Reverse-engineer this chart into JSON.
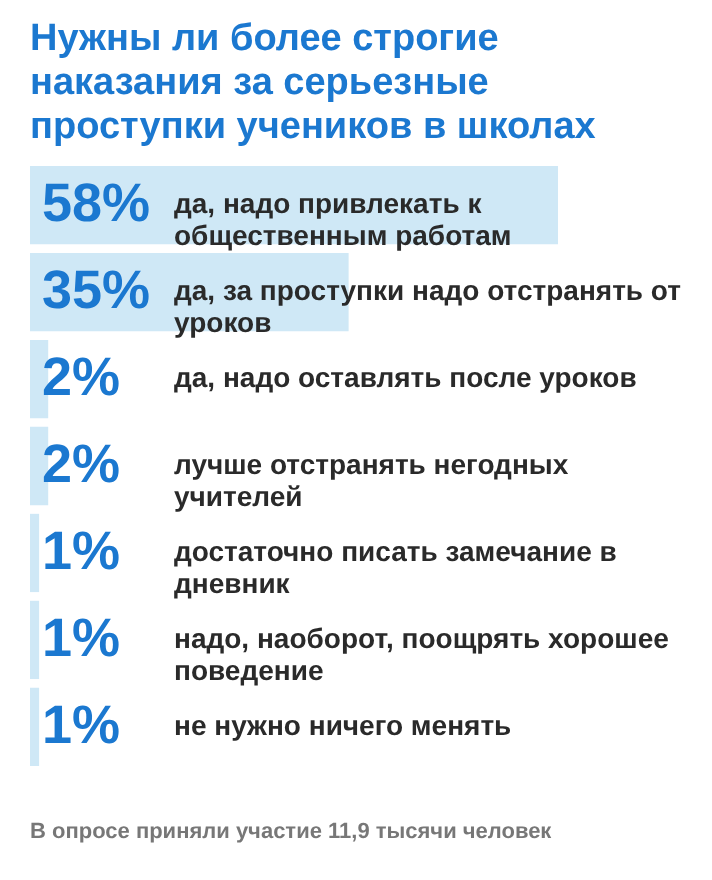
{
  "chart_data": {
    "type": "bar",
    "orientation": "horizontal",
    "title": "Нужны ли более строгие наказания за серьезные проступки  учеников в школах",
    "categories": [
      "да, надо привлекать к общественным работам",
      "да, за проступки надо отстранять от уроков",
      "да, надо оставлять после уроков",
      "лучше отстранять негодных учителей",
      "достаточно писать замечание в дневник",
      "надо, наоборот, поощрять хорошее поведение",
      "не нужно ничего менять"
    ],
    "values": [
      58,
      35,
      2,
      2,
      1,
      1,
      1
    ],
    "value_labels": [
      "58%",
      "35%",
      "2%",
      "2%",
      "1%",
      "1%",
      "1%"
    ],
    "color": "#cfe8f6",
    "annotations": [
      "В опросе приняли участие 11,9 тысячи человек"
    ]
  }
}
